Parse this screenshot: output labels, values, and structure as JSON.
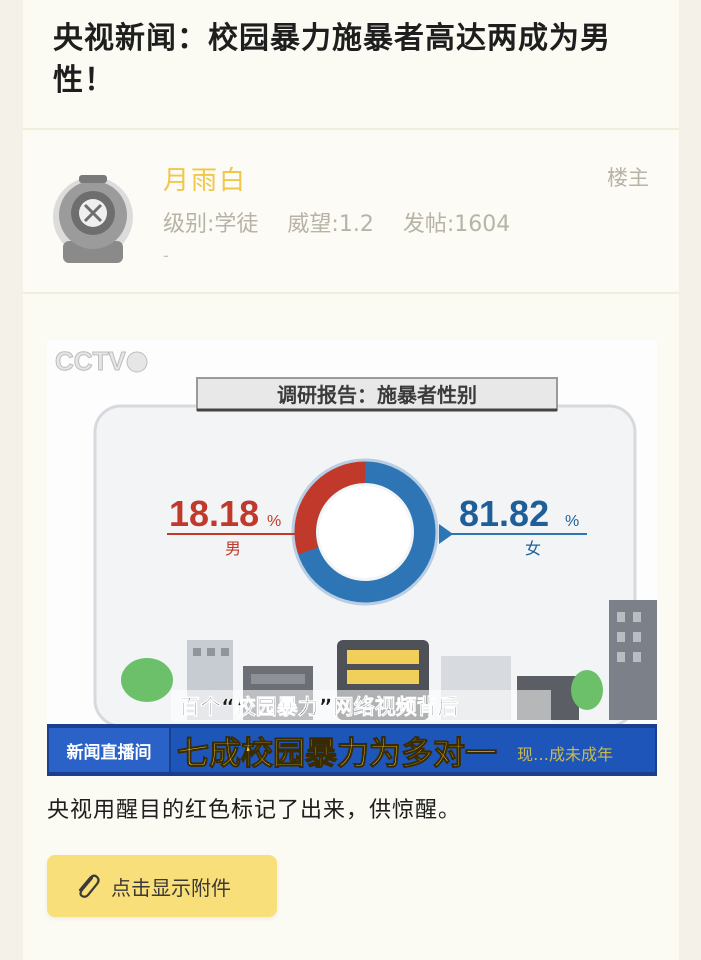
{
  "post": {
    "title": "央视新闻：校园暴力施暴者高达两成为男性！"
  },
  "author": {
    "name": "月雨白",
    "role": "楼主",
    "level": "级别:学徒",
    "prestige": "威望:1.2",
    "posts": "发帖:1604",
    "dash": "-"
  },
  "video": {
    "channel_logo": "CCTV",
    "report_title": "调研报告：施暴者性别",
    "male_value": "18.18",
    "male_unit": "%",
    "male_label": "男",
    "female_value": "81.82",
    "female_unit": "%",
    "female_label": "女",
    "subtitle_top": "百个“校园暴力”网络视频背后",
    "program_tag": "新闻直播间",
    "headline": "七成校园暴力为多对一",
    "headline_overlay": "现…成未成年",
    "colors": {
      "male": "#c0392b",
      "female": "#2e75b6",
      "banner": "#f3d23a"
    }
  },
  "chart_data": {
    "type": "pie",
    "title": "调研报告：施暴者性别",
    "categories": [
      "男",
      "女"
    ],
    "values": [
      18.18,
      81.82
    ],
    "unit": "%"
  },
  "body": {
    "caption": "央视用醒目的红色标记了出来，供惊醒。"
  },
  "attachment": {
    "label": "点击显示附件",
    "icon": "paperclip-icon"
  }
}
